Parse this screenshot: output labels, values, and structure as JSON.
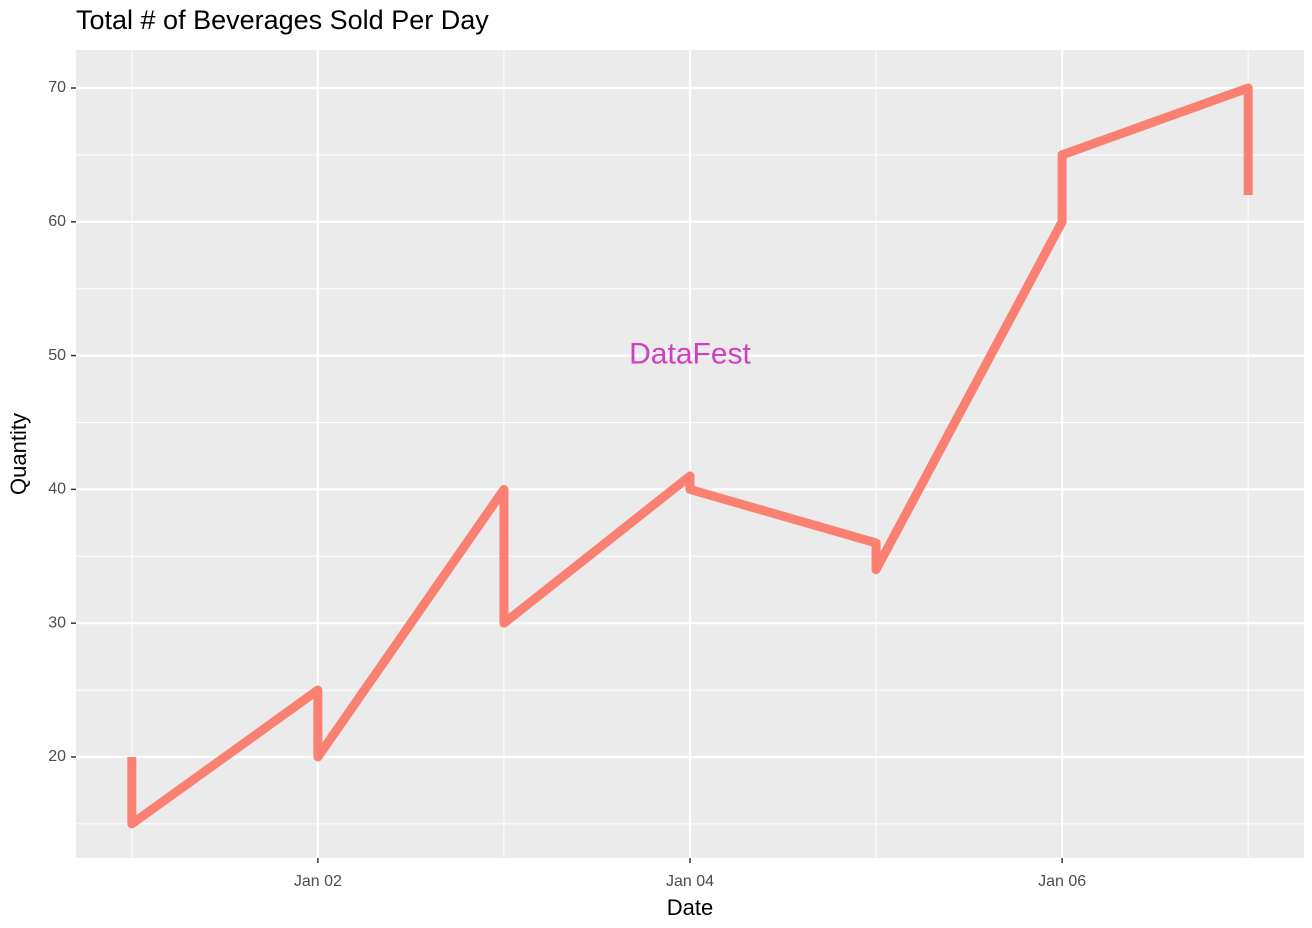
{
  "chart_data": {
    "type": "line",
    "title": "Total # of Beverages Sold Per Day",
    "x_label": "Date",
    "y_label": "Quantity",
    "series": [
      {
        "name": "Quantity",
        "color": "#fa8072",
        "x": [
          1,
          1,
          2,
          2,
          3,
          3,
          4,
          4,
          5,
          5,
          6,
          6,
          7,
          7
        ],
        "values": [
          20,
          15,
          25,
          20,
          40,
          30,
          41,
          40,
          36,
          34,
          60,
          65,
          70,
          62
        ]
      }
    ],
    "xlim": [
      0.7,
      7.3
    ],
    "xticks": [
      {
        "value": 2,
        "label": "Jan 02"
      },
      {
        "value": 4,
        "label": "Jan 04"
      },
      {
        "value": 6,
        "label": "Jan 06"
      }
    ],
    "ylim": [
      12.45,
      72.84
    ],
    "yticks": [
      20,
      30,
      40,
      50,
      60,
      70
    ],
    "grid": true,
    "annotations": [
      {
        "text": "DataFest",
        "x": 4,
        "y": 50,
        "color": "#d13fc0"
      }
    ]
  }
}
